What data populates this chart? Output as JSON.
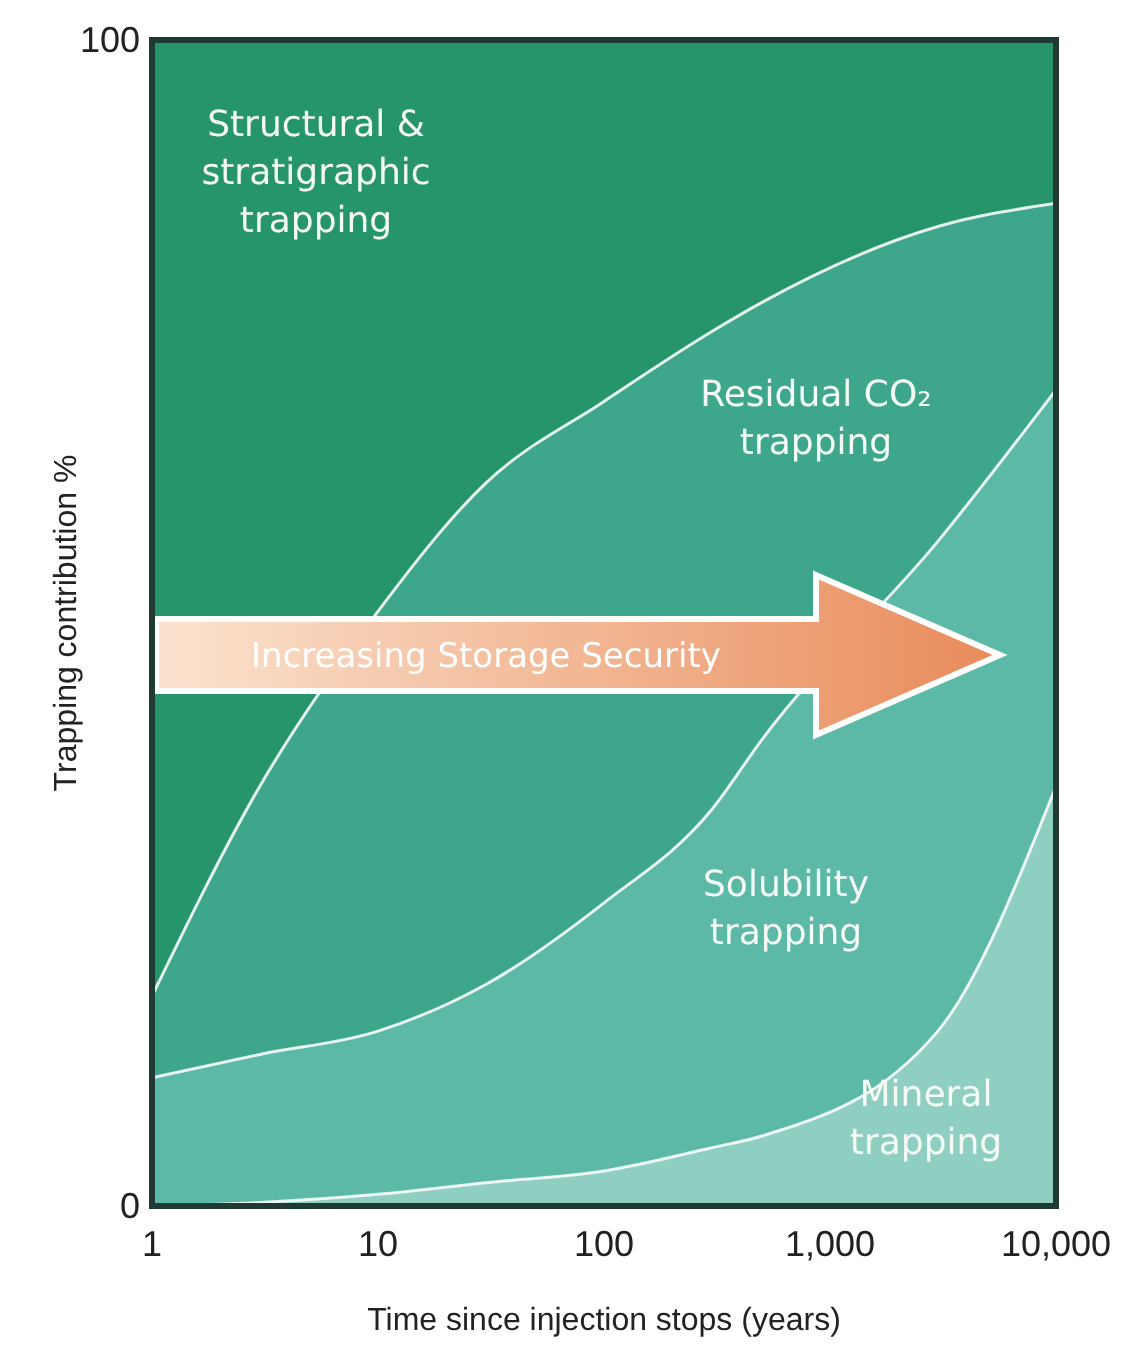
{
  "chart_data": {
    "type": "area",
    "stacked": true,
    "xlabel": "Time since injection stops (years)",
    "ylabel": "Trapping contribution %",
    "x": [
      1,
      3,
      10,
      30,
      100,
      300,
      500,
      3000,
      10000
    ],
    "log": "x",
    "xlim": [
      1,
      10000
    ],
    "xticks": [
      1,
      10,
      100,
      {
        "value": 1000,
        "label": "1,000"
      },
      {
        "value": 10000,
        "label": "10,000"
      }
    ],
    "ylim": [
      0,
      100
    ],
    "yticks": [
      0,
      100
    ],
    "series": [
      {
        "name": "Mineral trapping",
        "color": "#8fcfc2",
        "values": [
          0,
          0.3,
          1,
          2,
          3,
          5,
          6,
          15,
          36
        ]
      },
      {
        "name": "Solubility trapping",
        "color": "#5cb9a6",
        "values": [
          11,
          12.7,
          14,
          17,
          23,
          29,
          34,
          42,
          34
        ]
      },
      {
        "name": "Residual CO₂ trapping",
        "color": "#3ea68b",
        "values": [
          7,
          23,
          36,
          43,
          43,
          41,
          37.5,
          27,
          16
        ]
      },
      {
        "name": "Structural & stratigraphic trapping",
        "color": "#27956c",
        "values": [
          82,
          64,
          49,
          38,
          31,
          25,
          22.5,
          16,
          14
        ]
      }
    ],
    "annotations": [
      "Increasing Storage Security"
    ]
  }
}
